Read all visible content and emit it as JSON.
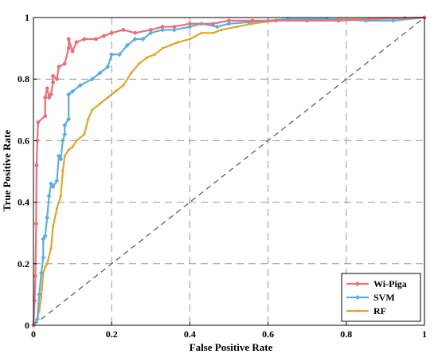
{
  "chart_data": {
    "type": "line",
    "title": "",
    "xlabel": "False Positive Rate",
    "ylabel": "True Positive Rate",
    "xlim": [
      0,
      1
    ],
    "ylim": [
      0,
      1
    ],
    "xticks": [
      "0",
      "0.2",
      "0.4",
      "0.6",
      "0.8",
      "1"
    ],
    "yticks": [
      "0",
      "0.2",
      "0.4",
      "0.6",
      "0.8",
      "1"
    ],
    "grid": true,
    "legend_position": "bottom-right",
    "diagonal_reference": true,
    "series": [
      {
        "name": "Wi-Piga",
        "color": "#e8707a",
        "marker": "circle",
        "points": [
          [
            0,
            0
          ],
          [
            0.003,
            0.08
          ],
          [
            0.005,
            0.16
          ],
          [
            0.007,
            0.33
          ],
          [
            0.008,
            0.52
          ],
          [
            0.01,
            0.6
          ],
          [
            0.012,
            0.66
          ],
          [
            0.03,
            0.68
          ],
          [
            0.03,
            0.74
          ],
          [
            0.035,
            0.77
          ],
          [
            0.04,
            0.74
          ],
          [
            0.045,
            0.75
          ],
          [
            0.05,
            0.79
          ],
          [
            0.05,
            0.81
          ],
          [
            0.06,
            0.8
          ],
          [
            0.065,
            0.84
          ],
          [
            0.08,
            0.85
          ],
          [
            0.09,
            0.9
          ],
          [
            0.09,
            0.93
          ],
          [
            0.1,
            0.89
          ],
          [
            0.11,
            0.92
          ],
          [
            0.13,
            0.93
          ],
          [
            0.16,
            0.93
          ],
          [
            0.18,
            0.94
          ],
          [
            0.2,
            0.95
          ],
          [
            0.23,
            0.96
          ],
          [
            0.26,
            0.95
          ],
          [
            0.3,
            0.96
          ],
          [
            0.33,
            0.97
          ],
          [
            0.36,
            0.97
          ],
          [
            0.4,
            0.98
          ],
          [
            0.46,
            0.98
          ],
          [
            0.5,
            0.99
          ],
          [
            0.56,
            0.99
          ],
          [
            0.62,
            0.99
          ],
          [
            0.7,
            0.99
          ],
          [
            0.78,
            0.99
          ],
          [
            0.86,
            0.995
          ],
          [
            0.95,
            0.998
          ],
          [
            1.0,
            1.0
          ]
        ]
      },
      {
        "name": "SVM",
        "color": "#5aaee0",
        "marker": "diamond",
        "points": [
          [
            0,
            0
          ],
          [
            0.01,
            0.02
          ],
          [
            0.015,
            0.1
          ],
          [
            0.02,
            0.17
          ],
          [
            0.025,
            0.22
          ],
          [
            0.025,
            0.28
          ],
          [
            0.03,
            0.29
          ],
          [
            0.035,
            0.35
          ],
          [
            0.04,
            0.42
          ],
          [
            0.045,
            0.46
          ],
          [
            0.05,
            0.45
          ],
          [
            0.06,
            0.47
          ],
          [
            0.065,
            0.55
          ],
          [
            0.07,
            0.54
          ],
          [
            0.075,
            0.6
          ],
          [
            0.08,
            0.62
          ],
          [
            0.08,
            0.65
          ],
          [
            0.09,
            0.67
          ],
          [
            0.09,
            0.75
          ],
          [
            0.1,
            0.76
          ],
          [
            0.12,
            0.78
          ],
          [
            0.15,
            0.8
          ],
          [
            0.17,
            0.82
          ],
          [
            0.19,
            0.84
          ],
          [
            0.2,
            0.88
          ],
          [
            0.22,
            0.88
          ],
          [
            0.24,
            0.91
          ],
          [
            0.26,
            0.93
          ],
          [
            0.28,
            0.93
          ],
          [
            0.3,
            0.95
          ],
          [
            0.33,
            0.96
          ],
          [
            0.36,
            0.96
          ],
          [
            0.4,
            0.97
          ],
          [
            0.43,
            0.98
          ],
          [
            0.47,
            0.97
          ],
          [
            0.5,
            0.98
          ],
          [
            0.55,
            0.985
          ],
          [
            0.6,
            0.99
          ],
          [
            0.65,
            0.995
          ],
          [
            0.75,
            0.995
          ],
          [
            0.85,
            0.99
          ],
          [
            0.92,
            0.99
          ],
          [
            1.0,
            1.0
          ]
        ]
      },
      {
        "name": "RF",
        "color": "#e2a52a",
        "marker": "point",
        "points": [
          [
            0,
            0
          ],
          [
            0.01,
            0.02
          ],
          [
            0.015,
            0.05
          ],
          [
            0.02,
            0.09
          ],
          [
            0.025,
            0.17
          ],
          [
            0.03,
            0.19
          ],
          [
            0.035,
            0.2
          ],
          [
            0.045,
            0.25
          ],
          [
            0.05,
            0.32
          ],
          [
            0.06,
            0.38
          ],
          [
            0.07,
            0.42
          ],
          [
            0.075,
            0.5
          ],
          [
            0.08,
            0.55
          ],
          [
            0.09,
            0.57
          ],
          [
            0.1,
            0.58
          ],
          [
            0.11,
            0.6
          ],
          [
            0.13,
            0.62
          ],
          [
            0.14,
            0.67
          ],
          [
            0.15,
            0.7
          ],
          [
            0.17,
            0.72
          ],
          [
            0.19,
            0.74
          ],
          [
            0.21,
            0.76
          ],
          [
            0.23,
            0.78
          ],
          [
            0.25,
            0.82
          ],
          [
            0.27,
            0.85
          ],
          [
            0.29,
            0.87
          ],
          [
            0.31,
            0.88
          ],
          [
            0.33,
            0.9
          ],
          [
            0.35,
            0.91
          ],
          [
            0.37,
            0.92
          ],
          [
            0.4,
            0.93
          ],
          [
            0.43,
            0.95
          ],
          [
            0.46,
            0.95
          ],
          [
            0.48,
            0.96
          ],
          [
            0.52,
            0.97
          ],
          [
            0.56,
            0.98
          ],
          [
            0.62,
            0.99
          ],
          [
            0.7,
            0.99
          ],
          [
            0.78,
            0.995
          ],
          [
            0.86,
            0.995
          ],
          [
            0.94,
            0.998
          ],
          [
            1.0,
            1.0
          ]
        ]
      }
    ]
  }
}
